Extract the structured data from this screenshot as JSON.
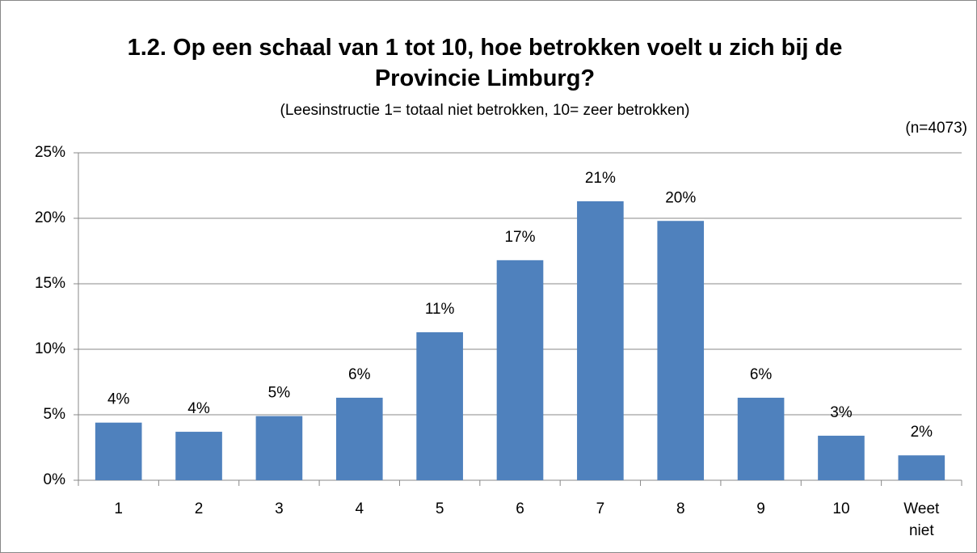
{
  "chart_data": {
    "type": "bar",
    "title": "1.2. Op een schaal van 1 tot 10, hoe betrokken voelt u zich bij de Provincie Limburg?",
    "subtitle": "(Leesinstructie 1= totaal niet betrokken, 10= zeer betrokken)",
    "note": "(n=4073)",
    "categories": [
      "1",
      "2",
      "3",
      "4",
      "5",
      "6",
      "7",
      "8",
      "9",
      "10",
      "Weet niet"
    ],
    "values": [
      4.4,
      3.7,
      4.9,
      6.3,
      11.3,
      16.8,
      21.3,
      19.8,
      6.3,
      3.4,
      1.9
    ],
    "value_labels": [
      "4%",
      "4%",
      "5%",
      "6%",
      "11%",
      "17%",
      "21%",
      "20%",
      "6%",
      "3%",
      "2%"
    ],
    "color": "#4f81bd",
    "ylim": [
      0,
      25
    ],
    "yticks": [
      {
        "value": 0,
        "label": "0%"
      },
      {
        "value": 5,
        "label": "5%"
      },
      {
        "value": 10,
        "label": "10%"
      },
      {
        "value": 15,
        "label": "15%"
      },
      {
        "value": 20,
        "label": "20%"
      },
      {
        "value": 25,
        "label": "25%"
      }
    ],
    "grid": true
  }
}
